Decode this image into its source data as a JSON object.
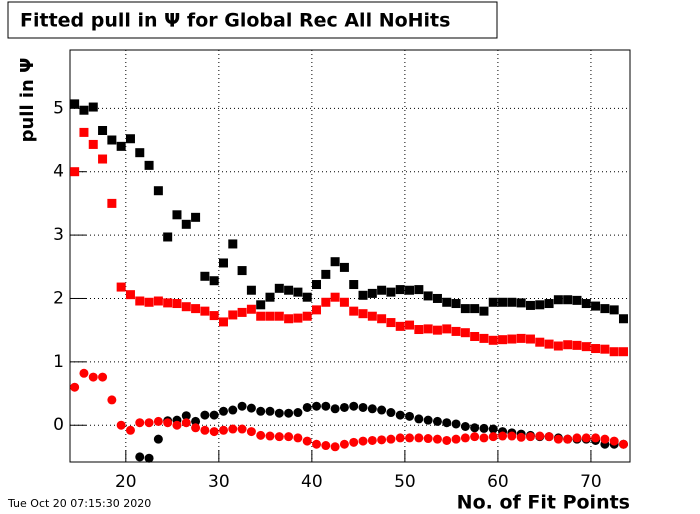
{
  "chart_data": {
    "type": "scatter",
    "title": "Fitted pull in  Ψ  for Global Rec All NoHits",
    "y_label": "pull in  Ψ",
    "x_label": "No. of Fit Points",
    "timestamp": "Tue Oct 20 07:15:30 2020",
    "xlim": [
      14,
      74.2
    ],
    "ylim": [
      -0.58,
      5.92
    ],
    "xticks": [
      20,
      30,
      40,
      50,
      60,
      70
    ],
    "yticks": [
      0,
      1,
      2,
      3,
      4,
      5
    ],
    "grid": true,
    "x": [
      14.5,
      15.5,
      16.5,
      17.5,
      18.5,
      19.5,
      20.5,
      21.5,
      22.5,
      23.5,
      24.5,
      25.5,
      26.5,
      27.5,
      28.5,
      29.5,
      30.5,
      31.5,
      32.5,
      33.5,
      34.5,
      35.5,
      36.5,
      37.5,
      38.5,
      39.5,
      40.5,
      41.5,
      42.5,
      43.5,
      44.5,
      45.5,
      46.5,
      47.5,
      48.5,
      49.5,
      50.5,
      51.5,
      52.5,
      53.5,
      54.5,
      55.5,
      56.5,
      57.5,
      58.5,
      59.5,
      60.5,
      61.5,
      62.5,
      63.5,
      64.5,
      65.5,
      66.5,
      67.5,
      68.5,
      69.5,
      70.5,
      71.5,
      72.5,
      73.5
    ],
    "series": [
      {
        "color": "#000000",
        "marker": "square",
        "values": [
          5.07,
          4.97,
          5.02,
          4.65,
          4.5,
          4.4,
          4.52,
          4.3,
          4.1,
          3.7,
          2.97,
          3.32,
          3.17,
          3.28,
          2.35,
          2.28,
          2.56,
          2.86,
          2.44,
          2.13,
          1.9,
          2.02,
          2.16,
          2.13,
          2.1,
          2.02,
          2.22,
          2.38,
          2.58,
          2.49,
          2.22,
          2.05,
          2.08,
          2.13,
          2.1,
          2.14,
          2.13,
          2.14,
          2.04,
          2.0,
          1.94,
          1.92,
          1.84,
          1.84,
          1.8,
          1.94,
          1.94,
          1.94,
          1.93,
          1.89,
          1.9,
          1.92,
          1.98,
          1.98,
          1.97,
          1.92,
          1.88,
          1.84,
          1.82,
          1.68
        ]
      },
      {
        "color": "#ff0000",
        "marker": "square",
        "values": [
          4.0,
          4.62,
          4.43,
          4.2,
          3.5,
          2.18,
          2.06,
          1.96,
          1.94,
          1.96,
          1.93,
          1.92,
          1.87,
          1.84,
          1.8,
          1.73,
          1.63,
          1.74,
          1.78,
          1.83,
          1.72,
          1.72,
          1.72,
          1.68,
          1.69,
          1.72,
          1.82,
          1.94,
          2.02,
          1.94,
          1.8,
          1.76,
          1.72,
          1.68,
          1.62,
          1.56,
          1.58,
          1.51,
          1.52,
          1.5,
          1.52,
          1.48,
          1.46,
          1.4,
          1.37,
          1.34,
          1.35,
          1.36,
          1.37,
          1.36,
          1.31,
          1.28,
          1.25,
          1.27,
          1.26,
          1.24,
          1.21,
          1.2,
          1.16,
          1.16
        ]
      },
      {
        "color": "#000000",
        "marker": "circle",
        "values": [
          null,
          null,
          null,
          null,
          null,
          null,
          null,
          -0.5,
          -0.52,
          -0.22,
          0.07,
          0.08,
          0.15,
          0.06,
          0.16,
          0.16,
          0.22,
          0.24,
          0.3,
          0.27,
          0.22,
          0.22,
          0.19,
          0.19,
          0.2,
          0.28,
          0.3,
          0.3,
          0.26,
          0.28,
          0.3,
          0.28,
          0.26,
          0.24,
          0.2,
          0.16,
          0.14,
          0.1,
          0.08,
          0.06,
          0.04,
          0.02,
          -0.02,
          -0.04,
          -0.05,
          -0.06,
          -0.1,
          -0.12,
          -0.14,
          -0.16,
          -0.18,
          -0.18,
          -0.2,
          -0.22,
          -0.22,
          -0.22,
          -0.24,
          -0.3,
          -0.3,
          -0.3
        ]
      },
      {
        "color": "#ff0000",
        "marker": "circle",
        "values": [
          0.6,
          0.82,
          0.76,
          0.76,
          0.4,
          0.0,
          -0.08,
          0.04,
          0.04,
          0.06,
          0.04,
          0.0,
          0.04,
          -0.04,
          -0.08,
          -0.1,
          -0.08,
          -0.06,
          -0.06,
          -0.1,
          -0.16,
          -0.17,
          -0.18,
          -0.18,
          -0.2,
          -0.25,
          -0.3,
          -0.32,
          -0.34,
          -0.3,
          -0.27,
          -0.25,
          -0.24,
          -0.23,
          -0.22,
          -0.2,
          -0.2,
          -0.2,
          -0.21,
          -0.22,
          -0.24,
          -0.22,
          -0.2,
          -0.18,
          -0.2,
          -0.18,
          -0.17,
          -0.17,
          -0.19,
          -0.18,
          -0.17,
          -0.18,
          -0.22,
          -0.22,
          -0.2,
          -0.2,
          -0.2,
          -0.22,
          -0.25,
          -0.3
        ]
      }
    ]
  }
}
